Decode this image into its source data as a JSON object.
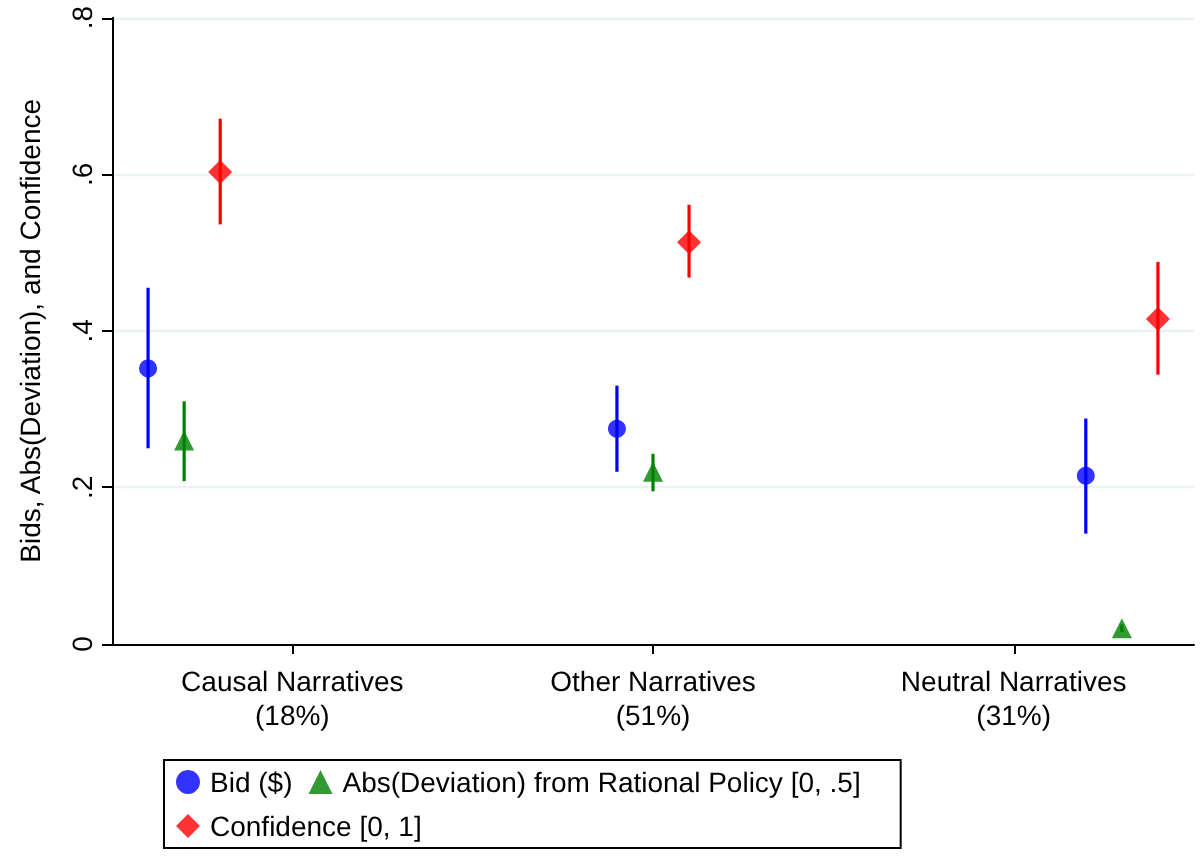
{
  "chart_data": {
    "type": "scatter",
    "ylabel": "Bids, Abs(Deviation), and Confidence",
    "categories": [
      "Causal Narratives\n(18%)",
      "Other Narratives\n(51%)",
      "Neutral Narratives\n(31%)"
    ],
    "ylim": [
      0,
      0.8
    ],
    "yticks": [
      {
        "value": 0,
        "label": "0"
      },
      {
        "value": 0.2,
        "label": ".2"
      },
      {
        "value": 0.4,
        "label": ".4"
      },
      {
        "value": 0.6,
        "label": ".6"
      },
      {
        "value": 0.8,
        "label": ".8"
      }
    ],
    "grid": "y",
    "legend": "bottom",
    "series": [
      {
        "name": "Bid ($)",
        "color": "#0000ff",
        "marker": "circle",
        "values": [
          0.352,
          0.275,
          0.215
        ],
        "errors": [
          [
            0.25,
            0.455
          ],
          [
            0.22,
            0.33
          ],
          [
            0.141,
            0.288
          ]
        ]
      },
      {
        "name": "Abs(Deviation) from Rational Policy [0, .5]",
        "color": "#008000",
        "marker": "triangle",
        "values": [
          0.26,
          0.22,
          0.02
        ],
        "errors": [
          [
            0.208,
            0.31
          ],
          [
            0.195,
            0.243
          ],
          [
            0.015,
            0.025
          ]
        ]
      },
      {
        "name": "Confidence [0, 1]",
        "color": "#ff0000",
        "marker": "diamond",
        "values": [
          0.603,
          0.513,
          0.415
        ],
        "errors": [
          [
            0.536,
            0.671
          ],
          [
            0.468,
            0.561
          ],
          [
            0.344,
            0.488
          ]
        ]
      }
    ]
  }
}
